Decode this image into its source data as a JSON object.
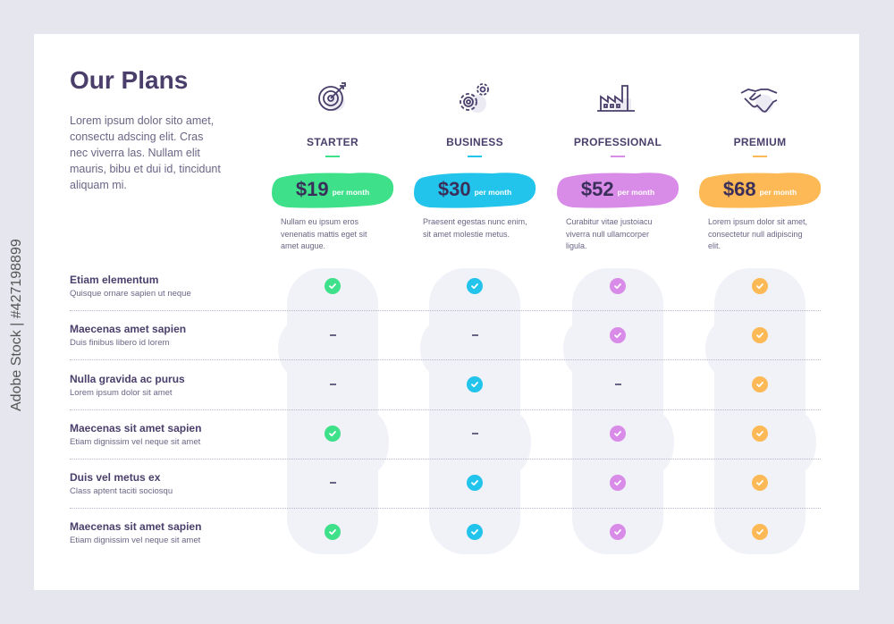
{
  "header": {
    "title": "Our Plans",
    "intro": "Lorem ipsum dolor sito amet, consectu adscing elit. Cras nec viverra las. Nullam elit mauris, bibu et dui id, tincidunt aliquam mi."
  },
  "plans": [
    {
      "name": "STARTER",
      "icon": "target-icon",
      "price": "$19",
      "period": "per month",
      "color": "#3ee08a",
      "desc": "Nullam eu ipsum eros venenatis mattis eget sit amet augue."
    },
    {
      "name": "BUSINESS",
      "icon": "gears-icon",
      "price": "$30",
      "period": "per month",
      "color": "#22c4ec",
      "desc": "Praesent egestas nunc enim, sit amet molestie metus."
    },
    {
      "name": "PROFESSIONAL",
      "icon": "factory-icon",
      "price": "$52",
      "period": "per month",
      "color": "#d98be8",
      "desc": "Curabitur vitae justoiacu viverra null ullamcorper ligula."
    },
    {
      "name": "PREMIUM",
      "icon": "handshake-icon",
      "price": "$68",
      "period": "per month",
      "color": "#fcb955",
      "desc": "Lorem ipsum dolor sit amet, consectetur null adipiscing elit."
    }
  ],
  "features": [
    {
      "title": "Etiam elementum",
      "sub": "Quisque ornare sapien ut neque",
      "values": [
        true,
        true,
        true,
        true
      ]
    },
    {
      "title": "Maecenas amet sapien",
      "sub": "Duis finibus libero id lorem",
      "values": [
        false,
        false,
        true,
        true
      ]
    },
    {
      "title": "Nulla gravida ac purus",
      "sub": "Lorem ipsum dolor sit amet",
      "values": [
        false,
        true,
        false,
        true
      ]
    },
    {
      "title": "Maecenas sit amet sapien",
      "sub": "Etiam dignissim vel neque sit amet",
      "values": [
        true,
        false,
        true,
        true
      ]
    },
    {
      "title": "Duis vel metus ex",
      "sub": "Class aptent taciti sociosqu",
      "values": [
        false,
        true,
        true,
        true
      ]
    },
    {
      "title": "Maecenas sit amet sapien",
      "sub": "Etiam dignissim vel neque sit amet",
      "values": [
        true,
        true,
        true,
        true
      ]
    }
  ],
  "watermark": "Adobe Stock | #427198899"
}
